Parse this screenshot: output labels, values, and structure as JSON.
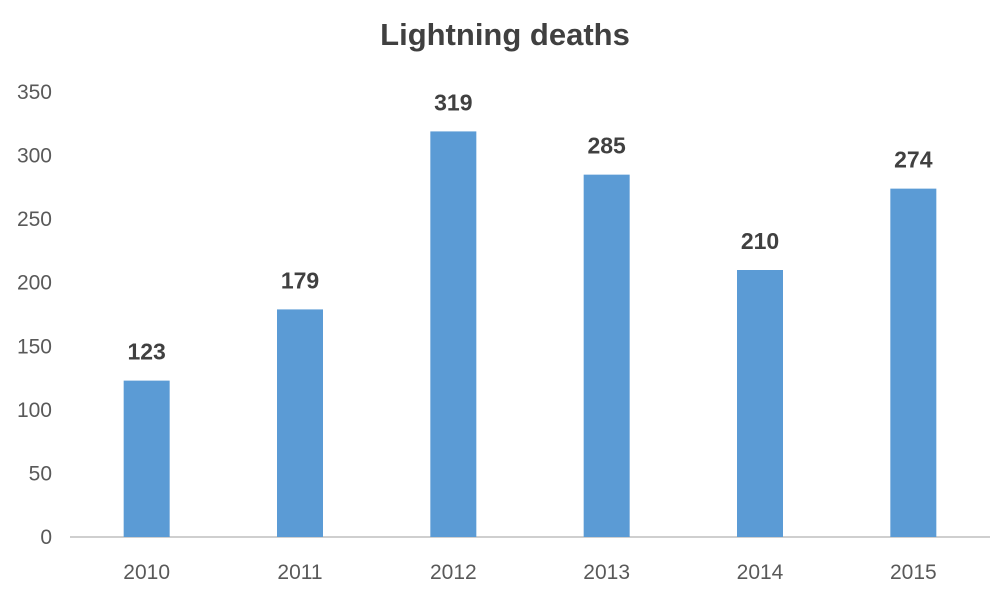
{
  "chart_data": {
    "type": "bar",
    "title": "Lightning deaths",
    "xlabel": "",
    "ylabel": "",
    "categories": [
      "2010",
      "2011",
      "2012",
      "2013",
      "2014",
      "2015"
    ],
    "values": [
      123,
      179,
      319,
      285,
      210,
      274
    ],
    "data_labels": [
      "123",
      "179",
      "319",
      "285",
      "210",
      "274"
    ],
    "yticks": [
      0,
      50,
      100,
      150,
      200,
      250,
      300,
      350
    ],
    "ytick_labels": [
      "0",
      "50",
      "100",
      "150",
      "200",
      "250",
      "300",
      "350"
    ],
    "ylim": [
      0,
      350
    ],
    "grid": false,
    "legend": "none",
    "bar_color": "#5B9BD5",
    "axis_color": "#BFBFBF"
  }
}
